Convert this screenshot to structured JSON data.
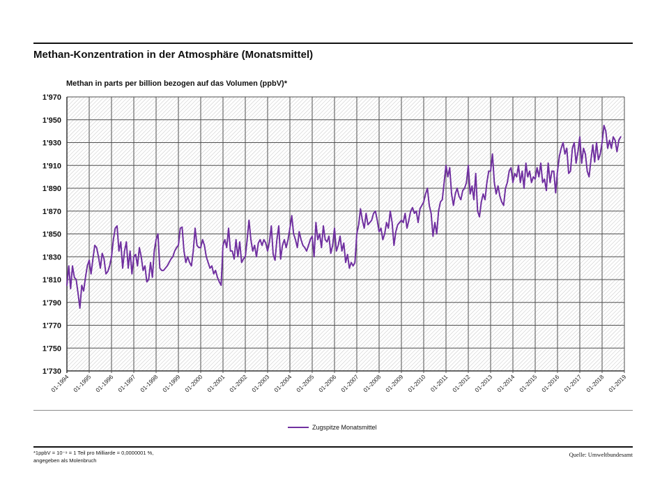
{
  "footnote": [
    "*1ppbV = 10⁻⁹ = 1 Teil pro Milliarde = 0,0000001 %,",
    "angegeben als Molenbruch"
  ],
  "source": "Quelle: Umweltbundesamt",
  "colors": {
    "series": "#7030a0",
    "grid": "#4f4f4f",
    "hatch": "#c4c4c4",
    "axis": "#333333"
  },
  "chart_data": {
    "type": "line",
    "title": "Methan-Konzentration in der Atmosphäre (Monatsmittel)",
    "ylabel": "Methan in parts per billion bezogen auf das Volumen (ppbV)*",
    "xlabel": "",
    "ylim": [
      1730,
      1970
    ],
    "grid": true,
    "legend": "bottom-center",
    "y_ticks": [
      {
        "value": 1970,
        "label": "1'970"
      },
      {
        "value": 1950,
        "label": "1'950"
      },
      {
        "value": 1930,
        "label": "1'930"
      },
      {
        "value": 1910,
        "label": "1'910"
      },
      {
        "value": 1890,
        "label": "1'890"
      },
      {
        "value": 1870,
        "label": "1'870"
      },
      {
        "value": 1850,
        "label": "1'850"
      },
      {
        "value": 1830,
        "label": "1'830"
      },
      {
        "value": 1810,
        "label": "1'810"
      },
      {
        "value": 1790,
        "label": "1'790"
      },
      {
        "value": 1770,
        "label": "1'770"
      },
      {
        "value": 1750,
        "label": "1'750"
      },
      {
        "value": 1730,
        "label": "1'730"
      }
    ],
    "x_ticks": [
      "01-1994",
      "01-1995",
      "01-1996",
      "01-1997",
      "01-1998",
      "01-1999",
      "01-2000",
      "01-2001",
      "01-2002",
      "01-2003",
      "01-2004",
      "01-2005",
      "01-2006",
      "01-2007",
      "01-2008",
      "01-2009",
      "01-2010",
      "01-2011",
      "01-2012",
      "01-2013",
      "01-2014",
      "01-2015",
      "01-2016",
      "01-2017",
      "01-2018",
      "01-2019"
    ],
    "x": [
      "01-1994",
      "02-1994",
      "03-1994",
      "04-1994",
      "05-1994",
      "06-1994",
      "07-1994",
      "08-1994",
      "09-1994",
      "10-1994",
      "11-1994",
      "12-1994",
      "01-1995",
      "02-1995",
      "03-1995",
      "04-1995",
      "05-1995",
      "06-1995",
      "07-1995",
      "08-1995",
      "09-1995",
      "10-1995",
      "11-1995",
      "12-1995",
      "01-1996",
      "02-1996",
      "03-1996",
      "04-1996",
      "05-1996",
      "06-1996",
      "07-1996",
      "08-1996",
      "09-1996",
      "10-1996",
      "11-1996",
      "12-1996",
      "01-1997",
      "02-1997",
      "03-1997",
      "04-1997",
      "05-1997",
      "06-1997",
      "07-1997",
      "08-1997",
      "09-1997",
      "10-1997",
      "11-1997",
      "12-1997",
      "01-1998",
      "02-1998",
      "03-1998",
      "04-1998",
      "05-1998",
      "06-1998",
      "07-1998",
      "08-1998",
      "09-1998",
      "10-1998",
      "11-1998",
      "12-1998",
      "01-1999",
      "02-1999",
      "03-1999",
      "04-1999",
      "05-1999",
      "06-1999",
      "07-1999",
      "08-1999",
      "09-1999",
      "10-1999",
      "11-1999",
      "12-1999",
      "01-2000",
      "02-2000",
      "03-2000",
      "04-2000",
      "05-2000",
      "06-2000",
      "07-2000",
      "08-2000",
      "09-2000",
      "10-2000",
      "11-2000",
      "12-2000",
      "01-2001",
      "02-2001",
      "03-2001",
      "04-2001",
      "05-2001",
      "06-2001",
      "07-2001",
      "08-2001",
      "09-2001",
      "10-2001",
      "11-2001",
      "12-2001",
      "01-2002",
      "02-2002",
      "03-2002",
      "04-2002",
      "05-2002",
      "06-2002",
      "07-2002",
      "08-2002",
      "09-2002",
      "10-2002",
      "11-2002",
      "12-2002",
      "01-2003",
      "02-2003",
      "03-2003",
      "04-2003",
      "05-2003",
      "06-2003",
      "07-2003",
      "08-2003",
      "09-2003",
      "10-2003",
      "11-2003",
      "12-2003",
      "01-2004",
      "02-2004",
      "03-2004",
      "04-2004",
      "05-2004",
      "06-2004",
      "07-2004",
      "08-2004",
      "09-2004",
      "10-2004",
      "11-2004",
      "12-2004",
      "01-2005",
      "02-2005",
      "03-2005",
      "04-2005",
      "05-2005",
      "06-2005",
      "07-2005",
      "08-2005",
      "09-2005",
      "10-2005",
      "11-2005",
      "12-2005",
      "01-2006",
      "02-2006",
      "03-2006",
      "04-2006",
      "05-2006",
      "06-2006",
      "07-2006",
      "08-2006",
      "09-2006",
      "10-2006",
      "11-2006",
      "12-2006",
      "01-2007",
      "02-2007",
      "03-2007",
      "04-2007",
      "05-2007",
      "06-2007",
      "07-2007",
      "08-2007",
      "09-2007",
      "10-2007",
      "11-2007",
      "12-2007",
      "01-2008",
      "02-2008",
      "03-2008",
      "04-2008",
      "05-2008",
      "06-2008",
      "07-2008",
      "08-2008",
      "09-2008",
      "10-2008",
      "11-2008",
      "12-2008",
      "01-2009",
      "02-2009",
      "03-2009",
      "04-2009",
      "05-2009",
      "06-2009",
      "07-2009",
      "08-2009",
      "09-2009",
      "10-2009",
      "11-2009",
      "12-2009",
      "01-2010",
      "02-2010",
      "03-2010",
      "04-2010",
      "05-2010",
      "06-2010",
      "07-2010",
      "08-2010",
      "09-2010",
      "10-2010",
      "11-2010",
      "12-2010",
      "01-2011",
      "02-2011",
      "03-2011",
      "04-2011",
      "05-2011",
      "06-2011",
      "07-2011",
      "08-2011",
      "09-2011",
      "10-2011",
      "11-2011",
      "12-2011",
      "01-2012",
      "02-2012",
      "03-2012",
      "04-2012",
      "05-2012",
      "06-2012",
      "07-2012",
      "08-2012",
      "09-2012",
      "10-2012",
      "11-2012",
      "12-2012",
      "01-2013",
      "02-2013",
      "03-2013",
      "04-2013",
      "05-2013",
      "06-2013",
      "07-2013",
      "08-2013",
      "09-2013",
      "10-2013",
      "11-2013",
      "12-2013",
      "01-2014",
      "02-2014",
      "03-2014",
      "04-2014",
      "05-2014",
      "06-2014",
      "07-2014",
      "08-2014",
      "09-2014",
      "10-2014",
      "11-2014",
      "12-2014",
      "01-2015",
      "02-2015",
      "03-2015",
      "04-2015",
      "05-2015",
      "06-2015",
      "07-2015",
      "08-2015",
      "09-2015",
      "10-2015",
      "11-2015",
      "12-2015",
      "01-2016",
      "02-2016",
      "03-2016",
      "04-2016",
      "05-2016",
      "06-2016",
      "07-2016",
      "08-2016",
      "09-2016",
      "10-2016",
      "11-2016",
      "12-2016",
      "01-2017",
      "02-2017",
      "03-2017",
      "04-2017",
      "05-2017",
      "06-2017",
      "07-2017",
      "08-2017",
      "09-2017",
      "10-2017",
      "11-2017",
      "12-2017",
      "01-2018",
      "02-2018",
      "03-2018",
      "04-2018",
      "05-2018",
      "06-2018",
      "07-2018",
      "08-2018",
      "09-2018",
      "10-2018",
      "11-2018"
    ],
    "series": [
      {
        "name": "Zugspitze Monatsmittel",
        "values": [
          1805,
          1822,
          1802,
          1822,
          1812,
          1810,
          1798,
          1785,
          1805,
          1800,
          1812,
          1822,
          1827,
          1815,
          1828,
          1840,
          1838,
          1830,
          1820,
          1833,
          1828,
          1815,
          1817,
          1822,
          1830,
          1845,
          1855,
          1857,
          1835,
          1843,
          1820,
          1835,
          1843,
          1820,
          1835,
          1815,
          1830,
          1832,
          1822,
          1838,
          1830,
          1818,
          1822,
          1808,
          1810,
          1825,
          1812,
          1835,
          1845,
          1850,
          1820,
          1818,
          1818,
          1820,
          1822,
          1825,
          1828,
          1830,
          1835,
          1838,
          1840,
          1855,
          1856,
          1835,
          1825,
          1830,
          1825,
          1822,
          1835,
          1855,
          1840,
          1838,
          1838,
          1845,
          1840,
          1830,
          1825,
          1820,
          1822,
          1815,
          1818,
          1812,
          1808,
          1805,
          1840,
          1845,
          1838,
          1855,
          1835,
          1835,
          1828,
          1845,
          1830,
          1843,
          1825,
          1828,
          1830,
          1845,
          1862,
          1845,
          1835,
          1840,
          1830,
          1842,
          1845,
          1840,
          1845,
          1842,
          1835,
          1843,
          1857,
          1832,
          1827,
          1845,
          1857,
          1828,
          1840,
          1845,
          1838,
          1845,
          1855,
          1866,
          1850,
          1845,
          1838,
          1852,
          1845,
          1840,
          1838,
          1835,
          1840,
          1845,
          1848,
          1830,
          1860,
          1845,
          1850,
          1838,
          1857,
          1845,
          1843,
          1848,
          1833,
          1840,
          1855,
          1835,
          1840,
          1848,
          1835,
          1842,
          1825,
          1832,
          1820,
          1825,
          1822,
          1825,
          1850,
          1858,
          1872,
          1862,
          1855,
          1868,
          1858,
          1860,
          1862,
          1868,
          1870,
          1862,
          1852,
          1855,
          1845,
          1850,
          1860,
          1855,
          1870,
          1860,
          1840,
          1852,
          1858,
          1860,
          1862,
          1860,
          1868,
          1855,
          1862,
          1870,
          1873,
          1868,
          1870,
          1860,
          1872,
          1875,
          1878,
          1885,
          1890,
          1875,
          1868,
          1848,
          1860,
          1850,
          1870,
          1878,
          1880,
          1895,
          1910,
          1900,
          1908,
          1885,
          1875,
          1885,
          1890,
          1883,
          1880,
          1888,
          1890,
          1895,
          1910,
          1885,
          1892,
          1880,
          1903,
          1870,
          1865,
          1878,
          1885,
          1880,
          1895,
          1905,
          1905,
          1920,
          1895,
          1885,
          1892,
          1883,
          1878,
          1875,
          1890,
          1895,
          1905,
          1908,
          1895,
          1903,
          1900,
          1910,
          1895,
          1905,
          1890,
          1912,
          1900,
          1905,
          1895,
          1900,
          1898,
          1908,
          1900,
          1912,
          1895,
          1898,
          1888,
          1912,
          1895,
          1905,
          1905,
          1886,
          1905,
          1918,
          1925,
          1930,
          1920,
          1925,
          1903,
          1905,
          1925,
          1930,
          1912,
          1922,
          1935,
          1912,
          1925,
          1920,
          1905,
          1900,
          1915,
          1928,
          1913,
          1930,
          1915,
          1920,
          1930,
          1945,
          1940,
          1925,
          1932,
          1925,
          1935,
          1932,
          1922,
          1932,
          1935
        ]
      }
    ]
  }
}
